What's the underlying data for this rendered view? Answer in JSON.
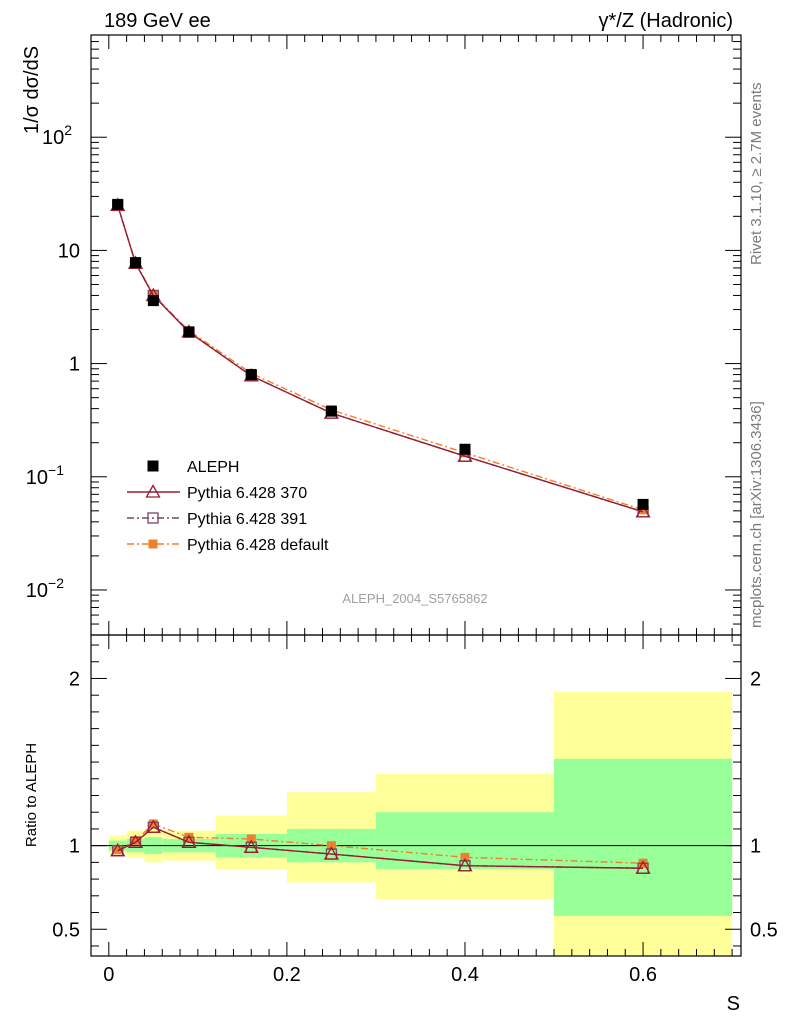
{
  "header": {
    "left": "189 GeV ee",
    "right": "γ*/Z (Hadronic)"
  },
  "side_text": {
    "top": "Rivet 3.1.10, ≥ 2.7M events",
    "bottom": "mcplots.cern.ch [arXiv:1306.3436]"
  },
  "colors": {
    "aleph": "#000000",
    "p370": "#9b1b30",
    "p391": "#7a4860",
    "pdef": "#f07f30",
    "band_inner": "#99ff99",
    "band_outer": "#ffff99"
  },
  "chart_data": [
    {
      "type": "line",
      "panel": "main",
      "ylabel": "1/σ dσ/dS",
      "yscale": "log",
      "ylim": [
        0.004,
        800
      ],
      "xlim": [
        -0.02,
        0.71
      ],
      "y_tick_labels": [
        "10^-2",
        "10^-1",
        "1",
        "10",
        "10^2"
      ],
      "watermark": "ALEPH_2004_S5765862",
      "legend_position": "lower-left",
      "x": [
        0.01,
        0.03,
        0.05,
        0.09,
        0.16,
        0.25,
        0.4,
        0.6
      ],
      "series": [
        {
          "name": "ALEPH",
          "style": "points",
          "values": [
            25.5,
            7.8,
            3.6,
            1.9,
            0.8,
            0.38,
            0.175,
            0.057
          ]
        },
        {
          "name": "Pythia 6.428 370",
          "style": "solid-triangle",
          "values": [
            25.0,
            7.7,
            4.0,
            1.9,
            0.78,
            0.365,
            0.152,
            0.049
          ]
        },
        {
          "name": "Pythia 6.428 391",
          "style": "dashdot-square",
          "values": [
            25.0,
            7.7,
            4.0,
            1.9,
            0.78,
            0.365,
            0.152,
            0.049
          ]
        },
        {
          "name": "Pythia 6.428 default",
          "style": "dashdot-filled-square",
          "values": [
            24.8,
            7.8,
            4.05,
            1.95,
            0.82,
            0.39,
            0.163,
            0.051
          ]
        }
      ]
    },
    {
      "type": "line",
      "panel": "ratio",
      "ylabel": "Ratio to ALEPH",
      "xlabel": "S",
      "ylim": [
        0.34,
        2.26
      ],
      "xlim": [
        -0.02,
        0.71
      ],
      "y_ticks": [
        0.5,
        1,
        2
      ],
      "y_tick_labels": [
        "0.5",
        "1",
        "2"
      ],
      "x_ticks": [
        0,
        0.2,
        0.4,
        0.6
      ],
      "x_tick_labels": [
        "0",
        "0.2",
        "0.4",
        "0.6"
      ],
      "x": [
        0.01,
        0.03,
        0.05,
        0.09,
        0.16,
        0.25,
        0.4,
        0.6
      ],
      "bands": {
        "edges": [
          0,
          0.02,
          0.04,
          0.06,
          0.12,
          0.2,
          0.3,
          0.5,
          0.7
        ],
        "inner": [
          [
            0.97,
            1.03
          ],
          [
            0.96,
            1.04
          ],
          [
            0.95,
            1.05
          ],
          [
            0.96,
            1.04
          ],
          [
            0.93,
            1.07
          ],
          [
            0.9,
            1.1
          ],
          [
            0.86,
            1.2
          ],
          [
            0.58,
            1.52
          ]
        ],
        "outer": [
          [
            0.95,
            1.06
          ],
          [
            0.93,
            1.09
          ],
          [
            0.9,
            1.1
          ],
          [
            0.91,
            1.09
          ],
          [
            0.86,
            1.18
          ],
          [
            0.78,
            1.32
          ],
          [
            0.68,
            1.43
          ],
          [
            0.33,
            1.92
          ]
        ]
      },
      "series": [
        {
          "name": "Pythia 6.428 370",
          "values": [
            0.97,
            1.02,
            1.11,
            1.02,
            0.99,
            0.95,
            0.88,
            0.865
          ]
        },
        {
          "name": "Pythia 6.428 391",
          "values": [
            0.97,
            1.02,
            1.11,
            1.02,
            0.99,
            0.95,
            0.88,
            0.865
          ]
        },
        {
          "name": "Pythia 6.428 default",
          "values": [
            0.975,
            1.03,
            1.13,
            1.05,
            1.04,
            1.0,
            0.93,
            0.895
          ]
        }
      ]
    }
  ]
}
